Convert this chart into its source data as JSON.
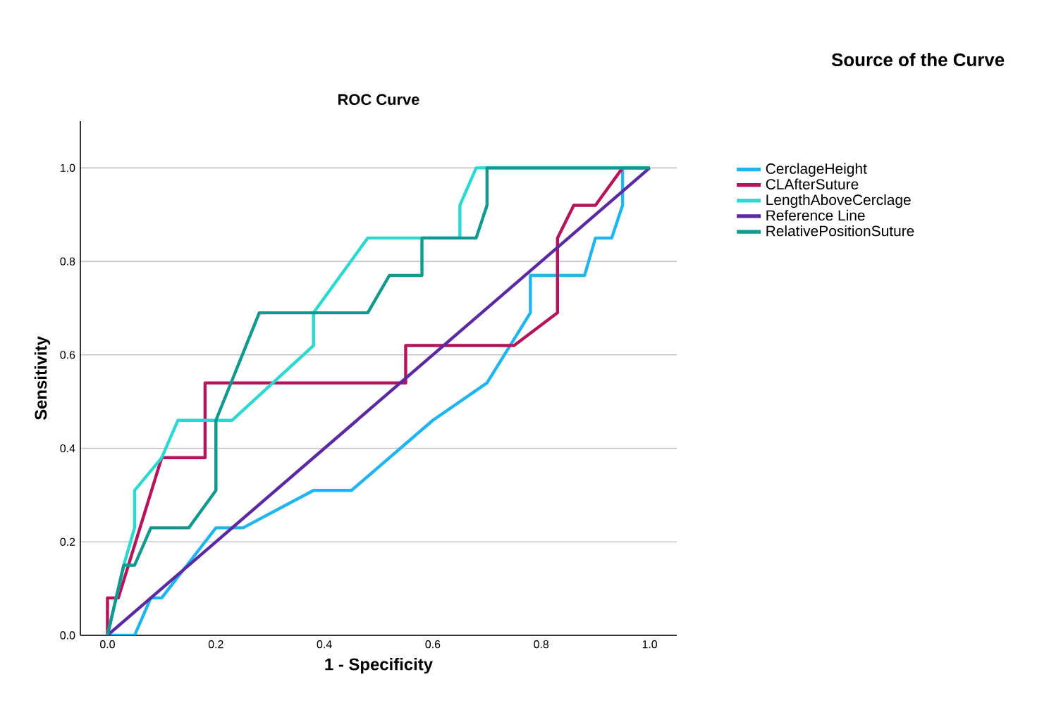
{
  "chart_data": {
    "type": "line",
    "title": "ROC Curve",
    "xlabel": "1 - Specificity",
    "ylabel": "Sensitivity",
    "legend_title": "Source of the Curve",
    "xlim": [
      -0.05,
      1.05
    ],
    "ylim": [
      0,
      1.1
    ],
    "xticks": [
      {
        "value": 0,
        "label": "0.0"
      },
      {
        "value": 0.2,
        "label": "0.2"
      },
      {
        "value": 0.4,
        "label": "0.4"
      },
      {
        "value": 0.6,
        "label": "0.6"
      },
      {
        "value": 0.8,
        "label": "0.8"
      },
      {
        "value": 1,
        "label": "1.0"
      }
    ],
    "yticks": [
      {
        "value": 0,
        "label": "0.0"
      },
      {
        "value": 0.2,
        "label": "0.2"
      },
      {
        "value": 0.4,
        "label": "0.4"
      },
      {
        "value": 0.6,
        "label": "0.6"
      },
      {
        "value": 0.8,
        "label": "0.8"
      },
      {
        "value": 1,
        "label": "1.0"
      }
    ],
    "grid": "y",
    "legend": "top right",
    "marker": "none",
    "line_style": "solid",
    "series": [
      {
        "name": "CerclageHeight",
        "color": "#1fb5f0",
        "x": [
          0,
          0.05,
          0.08,
          0.1,
          0.2,
          0.25,
          0.38,
          0.45,
          0.6,
          0.7,
          0.78,
          0.78,
          0.88,
          0.9,
          0.93,
          0.95,
          0.95,
          1
        ],
        "values": [
          0,
          0,
          0.08,
          0.08,
          0.23,
          0.23,
          0.31,
          0.31,
          0.46,
          0.54,
          0.69,
          0.77,
          0.77,
          0.85,
          0.85,
          0.92,
          1,
          1
        ]
      },
      {
        "name": "CLAfterSuture",
        "color": "#b5135a",
        "x": [
          0,
          0,
          0.02,
          0.1,
          0.18,
          0.18,
          0.55,
          0.55,
          0.75,
          0.83,
          0.83,
          0.86,
          0.9,
          0.95,
          1
        ],
        "values": [
          0,
          0.08,
          0.08,
          0.38,
          0.38,
          0.54,
          0.54,
          0.62,
          0.62,
          0.69,
          0.85,
          0.92,
          0.92,
          1,
          1
        ]
      },
      {
        "name": "LengthAboveCerclage",
        "color": "#2ad9d0",
        "x": [
          0,
          0.03,
          0.05,
          0.05,
          0.1,
          0.13,
          0.23,
          0.38,
          0.38,
          0.48,
          0.65,
          0.65,
          0.68,
          1
        ],
        "values": [
          0,
          0.15,
          0.23,
          0.31,
          0.38,
          0.46,
          0.46,
          0.62,
          0.69,
          0.85,
          0.85,
          0.92,
          1,
          1
        ]
      },
      {
        "name": "Reference Line",
        "color": "#5b2aa0",
        "x": [
          0,
          1
        ],
        "values": [
          0,
          1
        ]
      },
      {
        "name": "RelativePositionSuture",
        "color": "#10998f",
        "x": [
          0,
          0.03,
          0.05,
          0.08,
          0.15,
          0.2,
          0.2,
          0.28,
          0.48,
          0.52,
          0.58,
          0.58,
          0.68,
          0.7,
          0.7,
          1
        ],
        "values": [
          0,
          0.15,
          0.15,
          0.23,
          0.23,
          0.31,
          0.46,
          0.69,
          0.69,
          0.77,
          0.77,
          0.85,
          0.85,
          0.92,
          1,
          1
        ]
      }
    ]
  }
}
